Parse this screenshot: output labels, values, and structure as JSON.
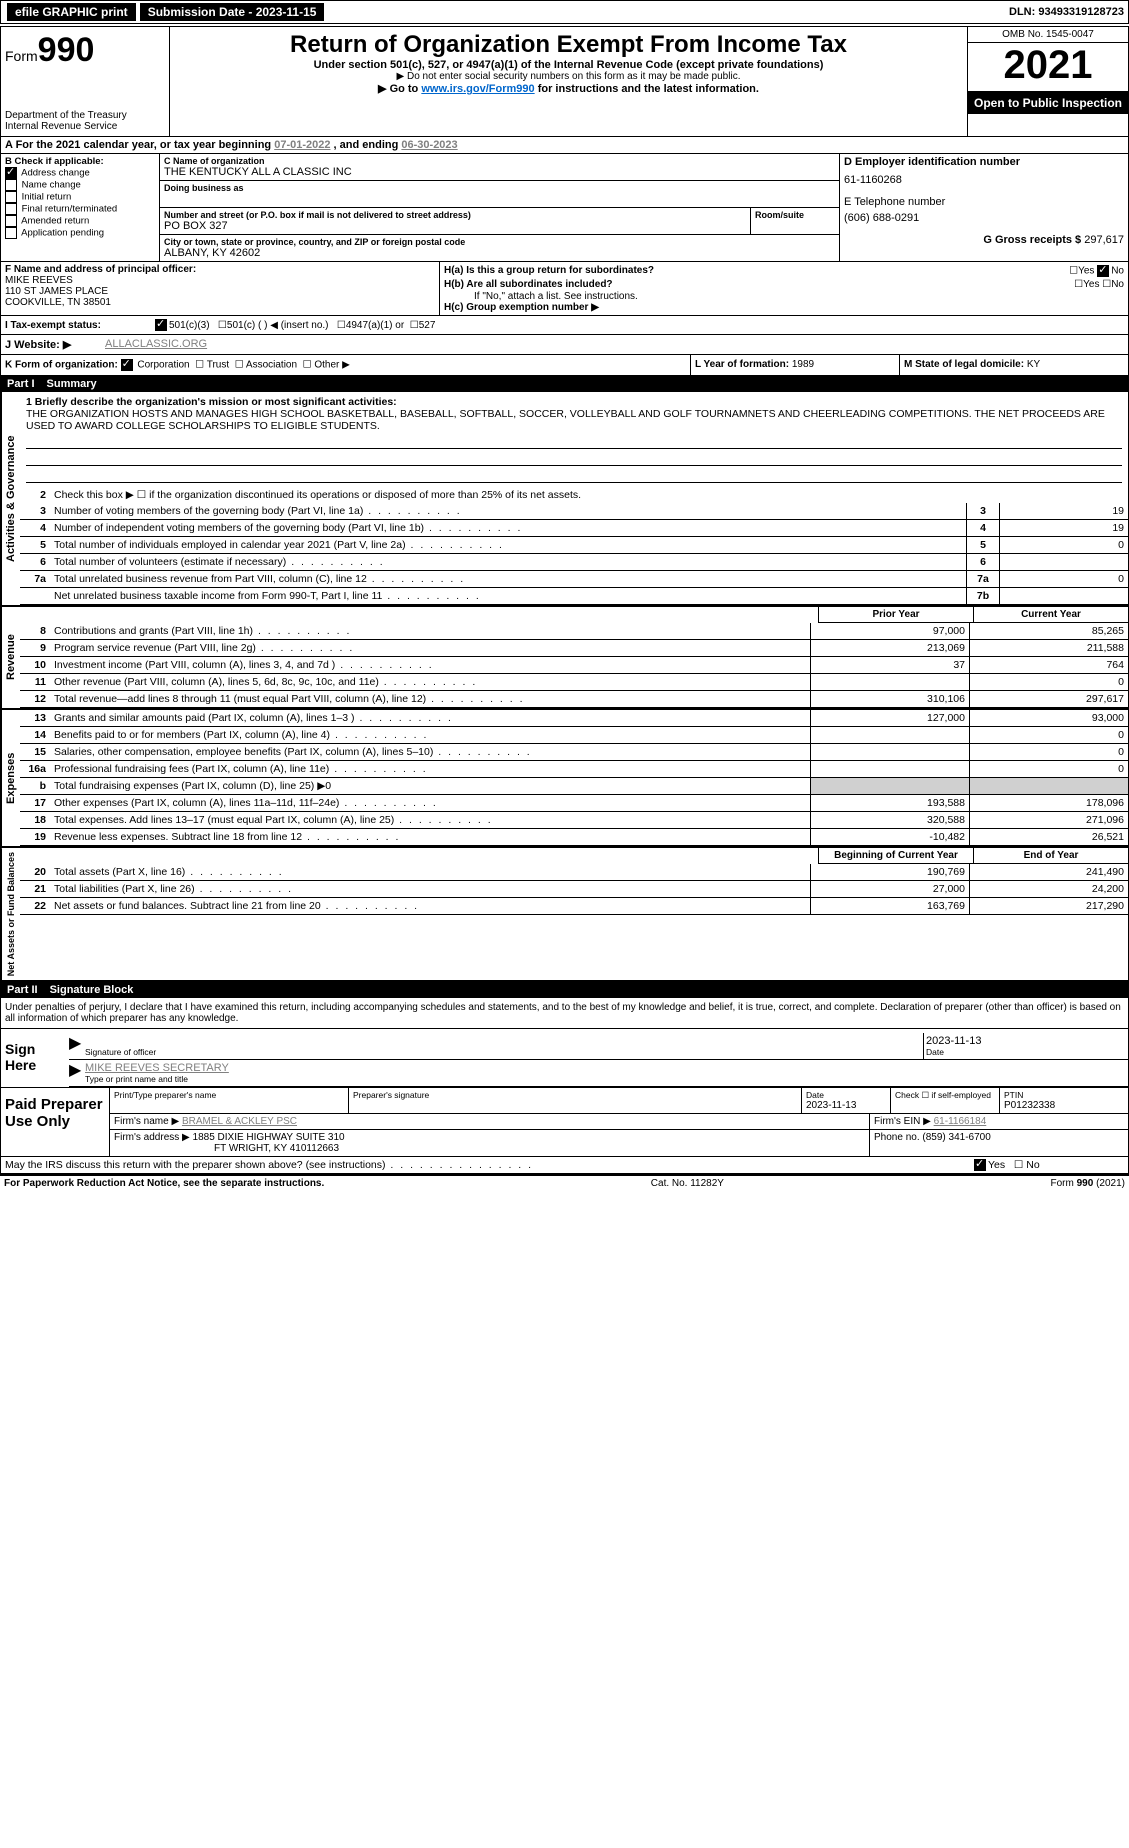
{
  "topbar": {
    "efile": "efile GRAPHIC print",
    "submission": "Submission Date - 2023-11-15",
    "dln": "DLN: 93493319128723"
  },
  "header": {
    "form_prefix": "Form",
    "form_number": "990",
    "title": "Return of Organization Exempt From Income Tax",
    "subtitle": "Under section 501(c), 527, or 4947(a)(1) of the Internal Revenue Code (except private foundations)",
    "warn": "▶ Do not enter social security numbers on this form as it may be made public.",
    "goto": "▶ Go to ",
    "goto_link": "www.irs.gov/Form990",
    "goto_suffix": " for instructions and the latest information.",
    "dept": "Department of the Treasury",
    "irs": "Internal Revenue Service",
    "omb": "OMB No. 1545-0047",
    "year": "2021",
    "open": "Open to Public Inspection"
  },
  "period": {
    "label_a": "A For the 2021 calendar year, or tax year beginning ",
    "begin": "07-01-2022",
    "mid": "   , and ending ",
    "end": "06-30-2023"
  },
  "sectionB": {
    "label": "B Check if applicable:",
    "items": [
      {
        "label": "Address change",
        "checked": true
      },
      {
        "label": "Name change",
        "checked": false
      },
      {
        "label": "Initial return",
        "checked": false
      },
      {
        "label": "Final return/terminated",
        "checked": false
      },
      {
        "label": "Amended return",
        "checked": false
      },
      {
        "label": "Application pending",
        "checked": false
      }
    ]
  },
  "sectionC": {
    "name_label": "C Name of organization",
    "name": "THE KENTUCKY ALL A CLASSIC INC",
    "dba_label": "Doing business as",
    "addr_label": "Number and street (or P.O. box if mail is not delivered to street address)",
    "room_label": "Room/suite",
    "addr": "PO BOX 327",
    "city_label": "City or town, state or province, country, and ZIP or foreign postal code",
    "city": "ALBANY, KY  42602"
  },
  "sectionD": {
    "label": "D Employer identification number",
    "value": "61-1160268"
  },
  "sectionE": {
    "label": "E Telephone number",
    "value": "(606) 688-0291"
  },
  "sectionG": {
    "label": "G Gross receipts $",
    "value": "297,617"
  },
  "sectionF": {
    "label": "F Name and address of principal officer:",
    "name": "MIKE REEVES",
    "addr1": "110 ST JAMES PLACE",
    "addr2": "COOKVILLE, TN  38501"
  },
  "sectionH": {
    "a_label": "H(a)  Is this a group return for subordinates?",
    "a_yes": "Yes",
    "a_no": "No",
    "b_label": "H(b)  Are all subordinates included?",
    "b_note": "If \"No,\" attach a list. See instructions.",
    "c_label": "H(c)  Group exemption number ▶"
  },
  "sectionI": {
    "label": "I   Tax-exempt status:",
    "opt1": "501(c)(3)",
    "opt2": "501(c) (  ) ◀ (insert no.)",
    "opt3": "4947(a)(1) or",
    "opt4": "527"
  },
  "sectionJ": {
    "label": "J   Website: ▶",
    "value": "ALLACLASSIC.ORG"
  },
  "sectionK": {
    "label": "K Form of organization:",
    "opts": [
      "Corporation",
      "Trust",
      "Association",
      "Other ▶"
    ]
  },
  "sectionL": {
    "label": "L Year of formation:",
    "value": "1989"
  },
  "sectionM": {
    "label": "M State of legal domicile:",
    "value": "KY"
  },
  "part1": {
    "header": "Part I",
    "title": "Summary",
    "mission_label": "1  Briefly describe the organization's mission or most significant activities:",
    "mission": "THE ORGANIZATION HOSTS AND MANAGES HIGH SCHOOL BASKETBALL, BASEBALL, SOFTBALL, SOCCER, VOLLEYBALL AND GOLF TOURNAMNETS AND CHEERLEADING COMPETITIONS. THE NET PROCEEDS ARE USED TO AWARD COLLEGE SCHOLARSHIPS TO ELIGIBLE STUDENTS.",
    "line2": "Check this box ▶ ☐  if the organization discontinued its operations or disposed of more than 25% of its net assets.",
    "governance_lines": [
      {
        "n": "3",
        "d": "Number of voting members of the governing body (Part VI, line 1a)",
        "box": "3",
        "v": "19"
      },
      {
        "n": "4",
        "d": "Number of independent voting members of the governing body (Part VI, line 1b)",
        "box": "4",
        "v": "19"
      },
      {
        "n": "5",
        "d": "Total number of individuals employed in calendar year 2021 (Part V, line 2a)",
        "box": "5",
        "v": "0"
      },
      {
        "n": "6",
        "d": "Total number of volunteers (estimate if necessary)",
        "box": "6",
        "v": ""
      },
      {
        "n": "7a",
        "d": "Total unrelated business revenue from Part VIII, column (C), line 12",
        "box": "7a",
        "v": "0"
      },
      {
        "n": "",
        "d": "Net unrelated business taxable income from Form 990-T, Part I, line 11",
        "box": "7b",
        "v": ""
      }
    ],
    "col_headers": {
      "prior": "Prior Year",
      "current": "Current Year"
    },
    "revenue_lines": [
      {
        "n": "8",
        "d": "Contributions and grants (Part VIII, line 1h)",
        "p": "97,000",
        "c": "85,265"
      },
      {
        "n": "9",
        "d": "Program service revenue (Part VIII, line 2g)",
        "p": "213,069",
        "c": "211,588"
      },
      {
        "n": "10",
        "d": "Investment income (Part VIII, column (A), lines 3, 4, and 7d )",
        "p": "37",
        "c": "764"
      },
      {
        "n": "11",
        "d": "Other revenue (Part VIII, column (A), lines 5, 6d, 8c, 9c, 10c, and 11e)",
        "p": "",
        "c": "0"
      },
      {
        "n": "12",
        "d": "Total revenue—add lines 8 through 11 (must equal Part VIII, column (A), line 12)",
        "p": "310,106",
        "c": "297,617"
      }
    ],
    "expense_lines": [
      {
        "n": "13",
        "d": "Grants and similar amounts paid (Part IX, column (A), lines 1–3 )",
        "p": "127,000",
        "c": "93,000"
      },
      {
        "n": "14",
        "d": "Benefits paid to or for members (Part IX, column (A), line 4)",
        "p": "",
        "c": "0"
      },
      {
        "n": "15",
        "d": "Salaries, other compensation, employee benefits (Part IX, column (A), lines 5–10)",
        "p": "",
        "c": "0"
      },
      {
        "n": "16a",
        "d": "Professional fundraising fees (Part IX, column (A), line 11e)",
        "p": "",
        "c": "0"
      }
    ],
    "line_b": {
      "n": "b",
      "d": "Total fundraising expenses (Part IX, column (D), line 25) ▶0"
    },
    "expense_lines2": [
      {
        "n": "17",
        "d": "Other expenses (Part IX, column (A), lines 11a–11d, 11f–24e)",
        "p": "193,588",
        "c": "178,096"
      },
      {
        "n": "18",
        "d": "Total expenses. Add lines 13–17 (must equal Part IX, column (A), line 25)",
        "p": "320,588",
        "c": "271,096"
      },
      {
        "n": "19",
        "d": "Revenue less expenses. Subtract line 18 from line 12",
        "p": "-10,482",
        "c": "26,521"
      }
    ],
    "na_headers": {
      "begin": "Beginning of Current Year",
      "end": "End of Year"
    },
    "na_lines": [
      {
        "n": "20",
        "d": "Total assets (Part X, line 16)",
        "p": "190,769",
        "c": "241,490"
      },
      {
        "n": "21",
        "d": "Total liabilities (Part X, line 26)",
        "p": "27,000",
        "c": "24,200"
      },
      {
        "n": "22",
        "d": "Net assets or fund balances. Subtract line 21 from line 20",
        "p": "163,769",
        "c": "217,290"
      }
    ],
    "side_labels": {
      "gov": "Activities & Governance",
      "rev": "Revenue",
      "exp": "Expenses",
      "na": "Net Assets or Fund Balances"
    }
  },
  "part2": {
    "header": "Part II",
    "title": "Signature Block",
    "penalty": "Under penalties of perjury, I declare that I have examined this return, including accompanying schedules and statements, and to the best of my knowledge and belief, it is true, correct, and complete. Declaration of preparer (other than officer) is based on all information of which preparer has any knowledge.",
    "sign_here": "Sign Here",
    "sig_officer": "Signature of officer",
    "sig_date": "2023-11-13",
    "date_label": "Date",
    "officer_name": "MIKE REEVES SECRETARY",
    "type_name": "Type or print name and title",
    "paid_prep": "Paid Preparer Use Only",
    "prep_name_label": "Print/Type preparer's name",
    "prep_sig_label": "Preparer's signature",
    "prep_date_label": "Date",
    "prep_date": "2023-11-13",
    "check_if": "Check ☐ if self-employed",
    "ptin_label": "PTIN",
    "ptin": "P01232338",
    "firm_name_label": "Firm's name    ▶",
    "firm_name": "BRAMEL & ACKLEY PSC",
    "firm_ein_label": "Firm's EIN ▶",
    "firm_ein": "61-1166184",
    "firm_addr_label": "Firm's address ▶",
    "firm_addr1": "1885 DIXIE HIGHWAY SUITE 310",
    "firm_addr2": "FT WRIGHT, KY  410112663",
    "phone_label": "Phone no.",
    "phone": "(859) 341-6700",
    "discuss": "May the IRS discuss this return with the preparer shown above? (see instructions)",
    "yes": "Yes",
    "no": "No"
  },
  "footer": {
    "paperwork": "For Paperwork Reduction Act Notice, see the separate instructions.",
    "cat": "Cat. No. 11282Y",
    "form": "Form 990 (2021)"
  }
}
